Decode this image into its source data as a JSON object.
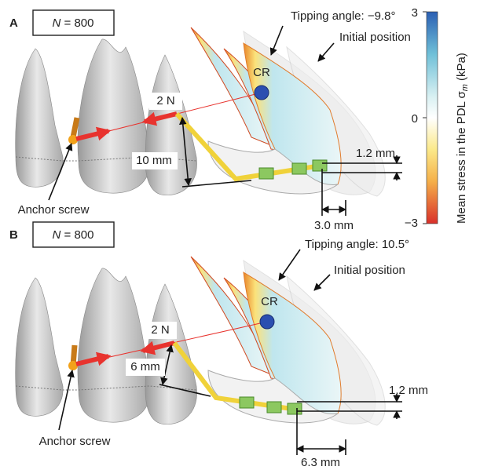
{
  "colorbar": {
    "ticks": [
      "3",
      "0",
      "−3"
    ],
    "label_main": "Mean stress in the PDL σ",
    "label_sub": "m",
    "label_unit": "(kPa)"
  },
  "panels": [
    {
      "letter": "A",
      "n_symbol": "N",
      "n_value": "= 800",
      "tipping": "Tipping angle: −9.8°",
      "initial": "Initial position",
      "cr": "CR",
      "force": "2 N",
      "lever": "10 mm",
      "vertical": "1.2 mm",
      "horizontal": "3.0 mm",
      "screw": "Anchor screw"
    },
    {
      "letter": "B",
      "n_symbol": "N",
      "n_value": "= 800",
      "tipping": "Tipping angle: 10.5°",
      "initial": "Initial position",
      "cr": "CR",
      "force": "2 N",
      "lever": "6 mm",
      "vertical": "1.2 mm",
      "horizontal": "6.3 mm",
      "screw": "Anchor screw"
    }
  ]
}
